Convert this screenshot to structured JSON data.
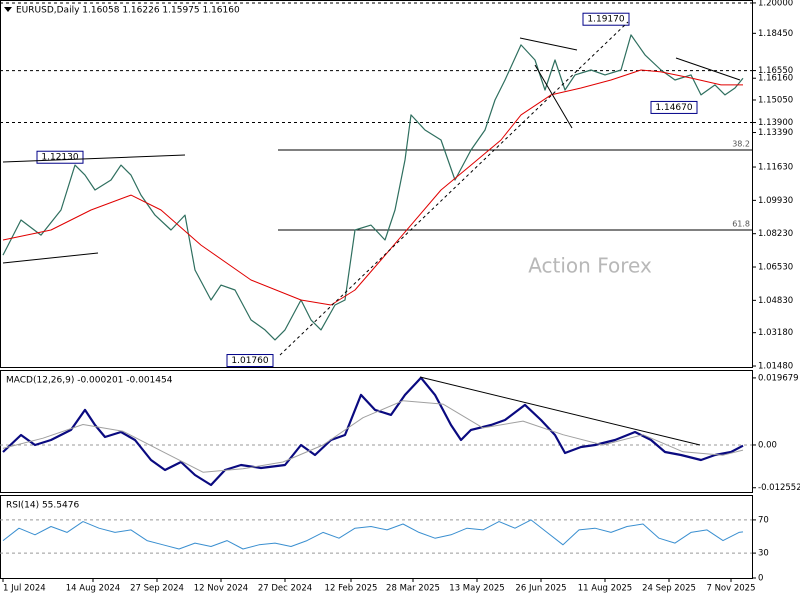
{
  "chart_data": [
    {
      "type": "line",
      "title": "EURUSD,Daily 1.16058 1.16226 1.15975 1.16160",
      "watermark": "Action Forex",
      "xlim": [
        -1.5,
        374.5
      ],
      "ylim": [
        1.0143,
        1.2015
      ],
      "yticks": [
        {
          "value": 1.2,
          "label": "1.20000"
        },
        {
          "value": 1.1845,
          "label": "1.18450"
        },
        {
          "value": 1.1655,
          "label": "1.16550"
        },
        {
          "value": 1.1616,
          "label": "1.16160"
        },
        {
          "value": 1.1505,
          "label": "1.15050"
        },
        {
          "value": 1.139,
          "label": "1.13900"
        },
        {
          "value": 1.1339,
          "label": "1.13390"
        },
        {
          "value": 1.1163,
          "label": "1.11630"
        },
        {
          "value": 1.0993,
          "label": "1.09930"
        },
        {
          "value": 1.0823,
          "label": "1.08230"
        },
        {
          "value": 1.0653,
          "label": "1.06530"
        },
        {
          "value": 1.0483,
          "label": "1.04830"
        },
        {
          "value": 1.0318,
          "label": "1.03180"
        },
        {
          "value": 1.0148,
          "label": "1.01480"
        }
      ],
      "levels": [
        1.2,
        1.1655,
        1.139
      ],
      "fib_levels": [
        {
          "level": 38.2,
          "price": 1.125
        },
        {
          "level": 61.8,
          "price": 1.0842
        }
      ],
      "price_labels": [
        {
          "x": 314,
          "value": 1.1917,
          "label": "1.19170"
        },
        {
          "x": 348,
          "value": 1.1467,
          "label": "1.14670"
        },
        {
          "x": 41,
          "value": 1.1213,
          "label": "1.12130"
        },
        {
          "x": 136,
          "value": 1.0176,
          "label": "1.01760"
        }
      ],
      "series": [
        {
          "color": "#2f6f5f",
          "width": 1.2,
          "x": [
            0,
            9,
            19,
            29,
            36,
            41,
            46,
            54,
            59,
            64,
            69,
            76,
            84,
            91,
            96,
            104,
            109,
            116,
            124,
            131,
            136,
            141,
            149,
            154,
            159,
            166,
            171,
            176,
            184,
            191,
            196,
            201,
            204,
            211,
            219,
            226,
            234,
            241,
            246,
            251,
            259,
            266,
            271,
            276,
            281,
            286,
            294,
            301,
            309,
            314,
            321,
            329,
            336,
            344,
            349,
            356,
            361,
            366,
            370
          ],
          "values": [
            1.0714,
            1.0893,
            1.0816,
            1.0944,
            1.1173,
            1.1122,
            1.1046,
            1.1097,
            1.1173,
            1.1122,
            1.102,
            1.0918,
            1.0842,
            1.0918,
            1.0638,
            1.0485,
            1.0561,
            1.0536,
            1.0383,
            1.0332,
            1.0281,
            1.0332,
            1.0485,
            1.0383,
            1.0332,
            1.0459,
            1.0485,
            1.0842,
            1.0867,
            1.0791,
            1.0944,
            1.1199,
            1.1429,
            1.1352,
            1.1301,
            1.1097,
            1.125,
            1.1352,
            1.1505,
            1.1607,
            1.1786,
            1.1709,
            1.1556,
            1.1709,
            1.1556,
            1.1633,
            1.1658,
            1.1633,
            1.1658,
            1.1837,
            1.1735,
            1.1658,
            1.1607,
            1.1633,
            1.1531,
            1.1582,
            1.1531,
            1.1566,
            1.1616
          ]
        },
        {
          "color": "#e00000",
          "width": 1,
          "x": [
            0,
            24,
            44,
            64,
            79,
            99,
            124,
            149,
            164,
            176,
            189,
            204,
            219,
            234,
            249,
            259,
            274,
            289,
            304,
            319,
            329,
            344,
            359,
            370
          ],
          "values": [
            1.0791,
            1.0842,
            1.0944,
            1.102,
            1.0944,
            1.0765,
            1.0587,
            1.0485,
            1.0459,
            1.0536,
            1.0689,
            1.0867,
            1.1046,
            1.1173,
            1.1301,
            1.1429,
            1.1531,
            1.1566,
            1.1607,
            1.1658,
            1.1648,
            1.1617,
            1.1582,
            1.1582
          ]
        }
      ]
    },
    {
      "type": "line",
      "title": "MACD(12,26,9) -0.000201 -0.001454",
      "xlim": [
        -1.5,
        374.5
      ],
      "ylim": [
        -0.0138,
        0.022
      ],
      "yticks": [
        0.019679,
        {
          "value": 0,
          "label": "0.00"
        },
        -0.012552
      ],
      "levels": [
        0
      ],
      "series": [
        {
          "color": "#0a0a80",
          "width": 2.2,
          "x": [
            0,
            9,
            16,
            24,
            34,
            41,
            46,
            51,
            59,
            66,
            74,
            81,
            89,
            96,
            104,
            111,
            119,
            129,
            141,
            149,
            156,
            164,
            171,
            179,
            186,
            194,
            201,
            209,
            216,
            224,
            229,
            234,
            244,
            251,
            261,
            269,
            276,
            281,
            289,
            296,
            306,
            316,
            324,
            331,
            339,
            349,
            356,
            364,
            370
          ],
          "values": [
            -0.00206,
            0.00294,
            0,
            0.00147,
            0.00441,
            0.01028,
            0.00587,
            0.00235,
            0.00382,
            0.00147,
            -0.00441,
            -0.00734,
            -0.00499,
            -0.00881,
            -0.01175,
            -0.00734,
            -0.00587,
            -0.00675,
            -0.00587,
            0,
            -0.00294,
            0.00147,
            0.00294,
            0.01468,
            0.01028,
            0.00881,
            0.01468,
            0.0197,
            0.01468,
            0.00587,
            0.00147,
            0.00441,
            0.00587,
            0.00734,
            0.01175,
            0.00734,
            0.00294,
            -0.00235,
            -0.00059,
            0,
            0.00147,
            0.00382,
            0.00147,
            -0.00206,
            -0.00294,
            -0.00441,
            -0.00294,
            -0.00206,
            -0.0002
          ]
        },
        {
          "color": "#a0a0a0",
          "width": 1,
          "x": [
            0,
            20,
            40,
            60,
            80,
            100,
            120,
            140,
            160,
            180,
            200,
            220,
            240,
            260,
            280,
            300,
            320,
            340,
            360,
            370
          ],
          "values": [
            -0.001,
            0.002,
            0.006,
            0.004,
            -0.002,
            -0.008,
            -0.007,
            -0.005,
            0,
            0.008,
            0.013,
            0.012,
            0.005,
            0.007,
            0.003,
            0,
            0.003,
            -0.002,
            -0.003,
            -0.0015
          ]
        }
      ]
    },
    {
      "type": "line",
      "title": "RSI(14) 55.5476",
      "xlim": [
        -1.5,
        374.5
      ],
      "ylim": [
        0,
        100
      ],
      "yticks": [
        70,
        30,
        0
      ],
      "levels": [
        70,
        30
      ],
      "xticks": [
        {
          "value": 0,
          "label": "1 Jul 2024"
        },
        {
          "value": 45,
          "label": "14 Aug 2024"
        },
        {
          "value": 77,
          "label": "27 Sep 2024"
        },
        {
          "value": 109,
          "label": "12 Nov 2024"
        },
        {
          "value": 141,
          "label": "27 Dec 2024"
        },
        {
          "value": 174,
          "label": "12 Feb 2025"
        },
        {
          "value": 205,
          "label": "28 Mar 2025"
        },
        {
          "value": 237,
          "label": "13 May 2025"
        },
        {
          "value": 269,
          "label": "26 Jun 2025"
        },
        {
          "value": 301,
          "label": "11 Aug 2025"
        },
        {
          "value": 333,
          "label": "24 Sep 2025"
        },
        {
          "value": 364,
          "label": "7 Nov 2025"
        }
      ],
      "series": [
        {
          "color": "#3a8fd0",
          "width": 1,
          "x": [
            0,
            8,
            16,
            24,
            32,
            40,
            48,
            56,
            64,
            72,
            80,
            88,
            96,
            104,
            112,
            120,
            128,
            136,
            144,
            152,
            160,
            168,
            176,
            184,
            192,
            200,
            208,
            216,
            224,
            232,
            240,
            248,
            256,
            264,
            272,
            280,
            288,
            296,
            304,
            312,
            320,
            328,
            336,
            344,
            352,
            360,
            368,
            370
          ],
          "values": [
            45,
            60,
            52,
            62,
            55,
            68,
            60,
            55,
            58,
            45,
            40,
            35,
            42,
            38,
            45,
            35,
            40,
            42,
            38,
            45,
            55,
            48,
            60,
            62,
            58,
            65,
            55,
            48,
            52,
            60,
            58,
            68,
            60,
            70,
            55,
            40,
            58,
            60,
            55,
            62,
            65,
            48,
            42,
            55,
            58,
            45,
            55,
            55.5476
          ]
        }
      ]
    }
  ]
}
